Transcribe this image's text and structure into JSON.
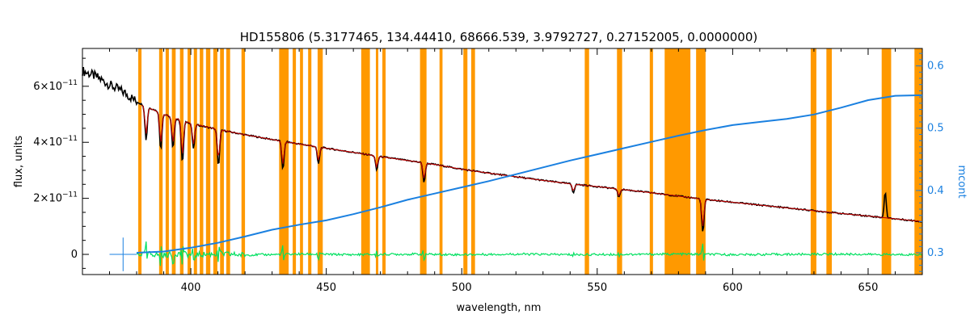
{
  "chart_data": {
    "type": "line",
    "title": "HD155806    (5.3177465, 134.44410, 68666.539, 3.9792727, 0.27152005, 0.0000000)",
    "xlabel": "wavelength, nm",
    "ylabel": "flux, units",
    "y2label": "mcont",
    "xlim": [
      360,
      670
    ],
    "ylim": [
      -0.72,
      7.35
    ],
    "y_scale_factor_label": "×10⁻¹¹",
    "y2lim": [
      0.265,
      0.628
    ],
    "x_ticks": [
      "400",
      "450",
      "500",
      "550",
      "600",
      "650"
    ],
    "x_tick_values": [
      400,
      450,
      500,
      550,
      600,
      650
    ],
    "y_ticks": [
      "0",
      "2×10",
      "4×10",
      "6×10"
    ],
    "y_tick_values": [
      0,
      2,
      4,
      6
    ],
    "y_tick_exponent": "−11",
    "y2_ticks": [
      "0.3",
      "0.4",
      "0.5",
      "0.6"
    ],
    "y2_tick_values": [
      0.3,
      0.4,
      0.5,
      0.6
    ],
    "masked_bands": [
      [
        380.6,
        381.8
      ],
      [
        388.3,
        389.6
      ],
      [
        390.7,
        391.9
      ],
      [
        393.0,
        394.4
      ],
      [
        396.0,
        397.3
      ],
      [
        398.8,
        400.0
      ],
      [
        401.1,
        402.3
      ],
      [
        403.3,
        404.6
      ],
      [
        405.6,
        407.2
      ],
      [
        408.3,
        409.8
      ],
      [
        410.8,
        412.2
      ],
      [
        413.1,
        414.5
      ],
      [
        418.7,
        420.0
      ],
      [
        432.6,
        436.1
      ],
      [
        437.6,
        438.8
      ],
      [
        440.3,
        441.4
      ],
      [
        443.3,
        444.5
      ],
      [
        446.8,
        448.7
      ],
      [
        462.9,
        466.1
      ],
      [
        468.3,
        469.2
      ],
      [
        470.7,
        471.9
      ],
      [
        484.6,
        487.0
      ],
      [
        491.8,
        492.9
      ],
      [
        500.6,
        502.1
      ],
      [
        503.5,
        504.9
      ],
      [
        545.4,
        547.0
      ],
      [
        557.3,
        559.2
      ],
      [
        569.4,
        570.6
      ],
      [
        574.9,
        584.4
      ],
      [
        586.5,
        590.0
      ],
      [
        628.8,
        630.9
      ],
      [
        634.6,
        636.6
      ],
      [
        655.0,
        658.5
      ],
      [
        667.1,
        670.0
      ]
    ],
    "series": [
      {
        "name": "",
        "color": "#000000",
        "x": [
          360,
          365,
          370,
          375,
          378,
          380,
          382,
          385,
          388,
          390,
          395,
          400,
          405,
          410,
          415,
          420,
          430,
          440,
          450,
          460,
          470,
          480,
          490,
          500,
          510,
          520,
          530,
          540,
          550,
          560,
          570,
          580,
          590,
          600,
          610,
          620,
          630,
          640,
          650,
          660,
          670
        ],
        "y": [
          6.55,
          6.35,
          6.05,
          5.8,
          5.6,
          5.45,
          5.35,
          5.22,
          5.1,
          5.0,
          4.82,
          4.68,
          4.56,
          4.46,
          4.36,
          4.27,
          4.1,
          3.94,
          3.79,
          3.64,
          3.49,
          3.35,
          3.21,
          3.04,
          2.9,
          2.77,
          2.64,
          2.52,
          2.42,
          2.31,
          2.2,
          2.08,
          1.96,
          1.86,
          1.76,
          1.66,
          1.56,
          1.46,
          1.37,
          1.27,
          1.17
        ]
      },
      {
        "name": "",
        "color": "#c00000",
        "x": [
          382,
          390,
          400,
          410,
          420,
          430,
          440,
          450,
          460,
          470,
          480,
          490,
          500,
          510,
          520,
          530,
          540,
          550,
          560,
          570,
          580,
          590,
          600,
          610,
          620,
          630,
          640,
          650,
          660,
          670
        ],
        "y": [
          5.33,
          5.0,
          4.68,
          4.46,
          4.27,
          4.1,
          3.94,
          3.79,
          3.64,
          3.49,
          3.35,
          3.21,
          3.04,
          2.9,
          2.77,
          2.64,
          2.52,
          2.42,
          2.31,
          2.2,
          2.08,
          1.96,
          1.86,
          1.76,
          1.66,
          1.56,
          1.46,
          1.37,
          1.27,
          1.17
        ]
      },
      {
        "name": "",
        "color": "#00e060",
        "x": [
          380,
          385,
          390,
          395,
          400,
          410,
          420,
          440,
          460,
          480,
          500,
          520,
          540,
          560,
          580,
          600,
          620,
          640,
          660,
          670
        ],
        "y": [
          0.0,
          0.02,
          -0.03,
          0.03,
          -0.02,
          0.02,
          -0.02,
          0.01,
          -0.01,
          0.01,
          -0.01,
          0.01,
          -0.01,
          0.0,
          0.01,
          -0.01,
          0.0,
          0.01,
          -0.01,
          0.0
        ]
      },
      {
        "name": "",
        "color": "#1a80e0",
        "axis": "right",
        "x": [
          380,
          390,
          400,
          410,
          420,
          430,
          440,
          450,
          460,
          470,
          480,
          490,
          500,
          510,
          520,
          530,
          540,
          550,
          560,
          570,
          580,
          590,
          600,
          610,
          620,
          630,
          640,
          650,
          660,
          670
        ],
        "y": [
          0.3,
          0.302,
          0.308,
          0.316,
          0.326,
          0.337,
          0.345,
          0.352,
          0.362,
          0.373,
          0.385,
          0.395,
          0.405,
          0.415,
          0.426,
          0.437,
          0.448,
          0.458,
          0.468,
          0.478,
          0.488,
          0.497,
          0.505,
          0.51,
          0.515,
          0.522,
          0.533,
          0.545,
          0.552,
          0.553
        ]
      }
    ],
    "absorption_lines": [
      {
        "x": 383.5,
        "depth": 1.2
      },
      {
        "x": 388.9,
        "depth": 1.3
      },
      {
        "x": 393.4,
        "depth": 1.1
      },
      {
        "x": 396.9,
        "depth": 1.5
      },
      {
        "x": 401.0,
        "depth": 0.9
      },
      {
        "x": 410.2,
        "depth": 1.3
      },
      {
        "x": 434.0,
        "depth": 1.0
      },
      {
        "x": 447.1,
        "depth": 0.6
      },
      {
        "x": 468.6,
        "depth": 0.5
      },
      {
        "x": 486.1,
        "depth": 0.7
      },
      {
        "x": 541.2,
        "depth": 0.3
      },
      {
        "x": 558.0,
        "depth": 0.3
      },
      {
        "x": 589.0,
        "depth": 1.2
      }
    ],
    "emission_lines": [
      {
        "x": 656.3,
        "height": 0.9
      }
    ]
  }
}
